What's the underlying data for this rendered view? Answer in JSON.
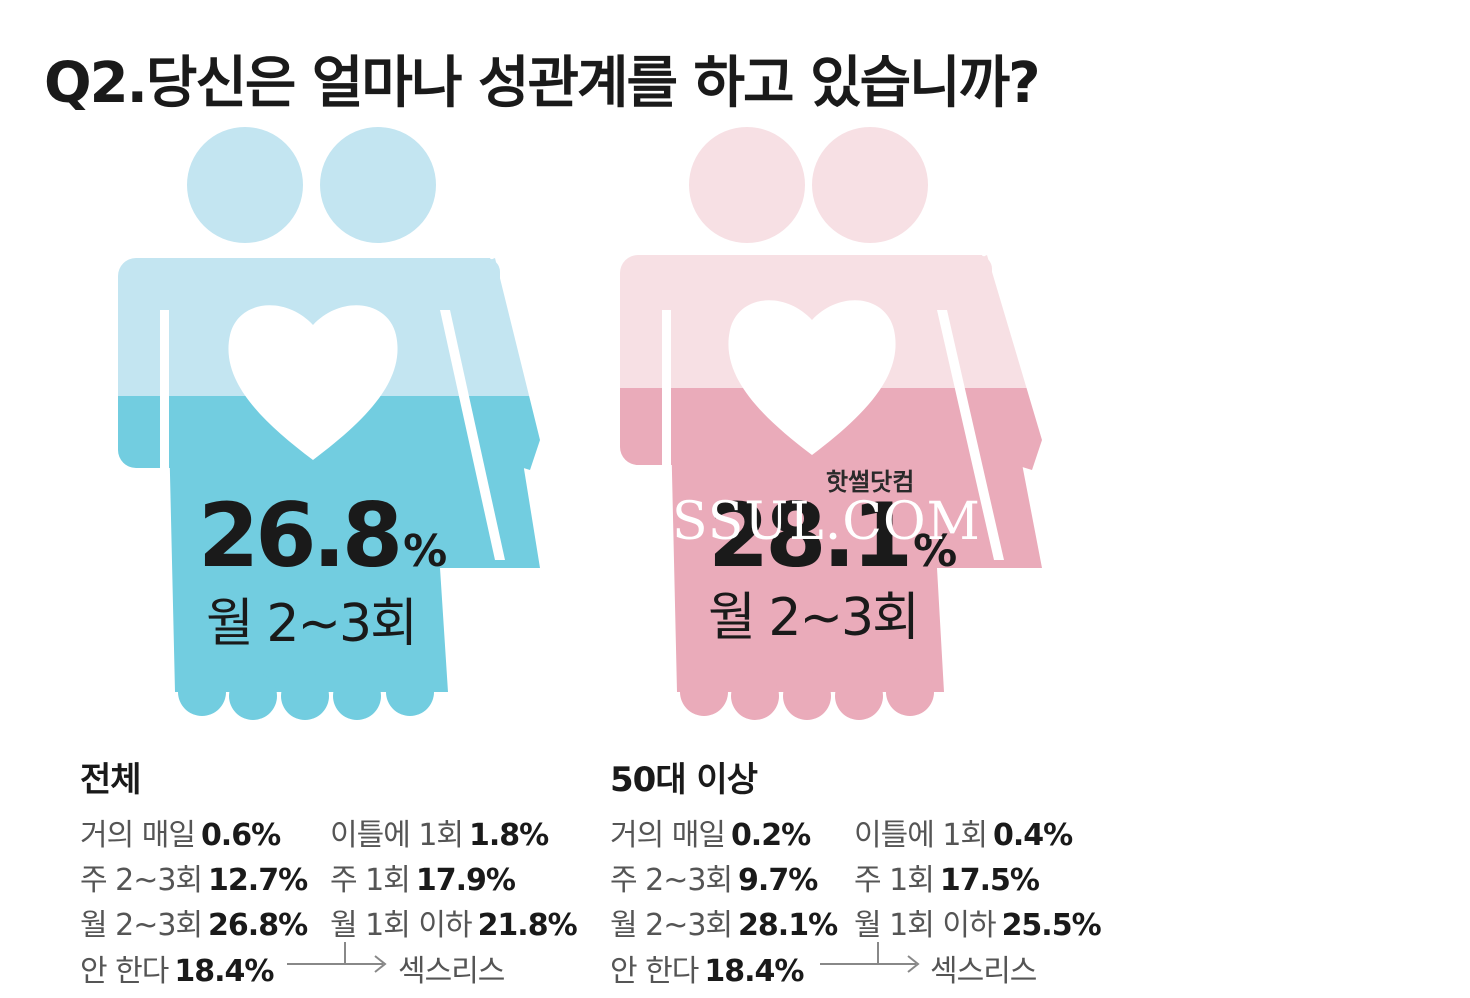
{
  "title": "Q2.당신은 얼마나 성관계를 하고 있습니까?",
  "colors": {
    "blue_light": "#c3e5f1",
    "blue_dark": "#72cde0",
    "pink_light": "#f7e0e4",
    "pink_dark": "#eaabba"
  },
  "watermark": {
    "small": "핫썰닷컴",
    "big": "SSUL.COM"
  },
  "chart_data": {
    "type": "table",
    "units": "%",
    "groups": [
      {
        "name": "전체",
        "highlight": {
          "value_text": "26.8",
          "unit": "%",
          "label": "월 2~3회",
          "value": 26.8
        },
        "categories": [
          "거의 매일",
          "이틀에 1회",
          "주 2~3회",
          "주 1회",
          "월 2~3회",
          "월 1회 이하",
          "안 한다"
        ],
        "values": [
          0.6,
          1.8,
          12.7,
          17.9,
          26.8,
          21.8,
          18.4
        ]
      },
      {
        "name": "50대 이상",
        "highlight": {
          "value_text": "28.1",
          "unit": "%",
          "label": "월 2~3회",
          "value": 28.1
        },
        "categories": [
          "거의 매일",
          "이틀에 1회",
          "주 2~3회",
          "주 1회",
          "월 2~3회",
          "월 1회 이하",
          "안 한다"
        ],
        "values": [
          0.2,
          0.4,
          9.7,
          17.5,
          28.1,
          25.5,
          18.4
        ]
      }
    ]
  },
  "group1": {
    "big_value": "26.8",
    "big_unit": "%",
    "big_label": "월 2~3회",
    "title": "전체",
    "rows": {
      "r1a_label": "거의 매일",
      "r1a_value": "0.6%",
      "r1b_label": "이틀에 1회",
      "r1b_value": "1.8%",
      "r2a_label": "주 2~3회",
      "r2a_value": "12.7%",
      "r2b_label": "주 1회",
      "r2b_value": "17.9%",
      "r3a_label": "월 2~3회",
      "r3a_value": "26.8%",
      "r3b_label": "월 1회 이하",
      "r3b_value": "21.8%",
      "r4a_label": "안 한다",
      "r4a_value": "18.4%",
      "sexless": "섹스리스"
    }
  },
  "group2": {
    "big_value": "28.1",
    "big_unit": "%",
    "big_label": "월 2~3회",
    "title": "50대 이상",
    "rows": {
      "r1a_label": "거의 매일",
      "r1a_value": "0.2%",
      "r1b_label": "이틀에 1회",
      "r1b_value": "0.4%",
      "r2a_label": "주 2~3회",
      "r2a_value": "9.7%",
      "r2b_label": "주 1회",
      "r2b_value": "17.5%",
      "r3a_label": "월 2~3회",
      "r3a_value": "28.1%",
      "r3b_label": "월 1회 이하",
      "r3b_value": "25.5%",
      "r4a_label": "안 한다",
      "r4a_value": "18.4%",
      "sexless": "섹스리스"
    }
  }
}
